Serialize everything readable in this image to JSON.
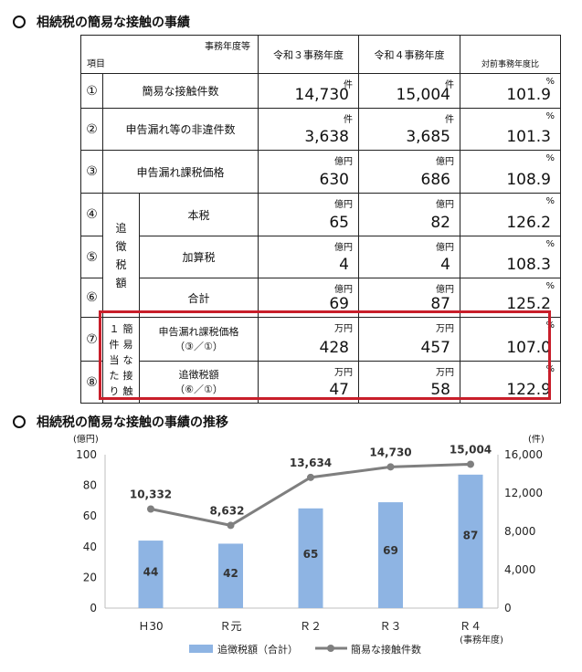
{
  "section1": {
    "title": "相続税の簡易な接触の事績"
  },
  "table": {
    "header_right_label": "事務年度等",
    "header_left_label": "項目",
    "col_r3": "令和３事務年度",
    "col_r4": "令和４事務年度",
    "col_ratio": "対前事務年度比",
    "group_label": "追徴税額",
    "per_case_label": "１件当たり",
    "simple_contact_label": "簡易な接触",
    "rows": [
      {
        "no": "①",
        "label": "簡易な接触件数",
        "unit": "件",
        "r3": "14,730",
        "r4": "15,004",
        "ratio_unit": "%",
        "ratio": "101.9"
      },
      {
        "no": "②",
        "label": "申告漏れ等の非違件数",
        "unit": "件",
        "r3": "3,638",
        "r4": "3,685",
        "ratio_unit": "%",
        "ratio": "101.3"
      },
      {
        "no": "③",
        "label": "申告漏れ課税価格",
        "unit": "億円",
        "r3": "630",
        "r4": "686",
        "ratio_unit": "%",
        "ratio": "108.9"
      },
      {
        "no": "④",
        "label": "本税",
        "unit": "億円",
        "r3": "65",
        "r4": "82",
        "ratio_unit": "%",
        "ratio": "126.2"
      },
      {
        "no": "⑤",
        "label": "加算税",
        "unit": "億円",
        "r3": "4",
        "r4": "4",
        "ratio_unit": "%",
        "ratio": "108.3"
      },
      {
        "no": "⑥",
        "label": "合計",
        "unit": "億円",
        "r3": "69",
        "r4": "87",
        "ratio_unit": "%",
        "ratio": "125.2"
      },
      {
        "no": "⑦",
        "label": "申告漏れ課税価格",
        "sub": "（③／①）",
        "unit": "万円",
        "r3": "428",
        "r4": "457",
        "ratio_unit": "%",
        "ratio": "107.0"
      },
      {
        "no": "⑧",
        "label": "追徴税額",
        "sub": "（⑥／①）",
        "unit": "万円",
        "r3": "47",
        "r4": "58",
        "ratio_unit": "%",
        "ratio": "122.9"
      }
    ]
  },
  "section2": {
    "title": "相続税の簡易な接触の事績の推移"
  },
  "chart_data": {
    "type": "bar",
    "categories": [
      "Ｈ30",
      "Ｒ元",
      "Ｒ２",
      "Ｒ３",
      "Ｒ４"
    ],
    "x_suffix": "(事務年度)",
    "left_unit": "(億円)",
    "right_unit": "(件)",
    "left_ylim": [
      0,
      100
    ],
    "left_ticks": [
      "0",
      "20",
      "40",
      "60",
      "80",
      "100"
    ],
    "right_ylim": [
      0,
      16000
    ],
    "right_ticks": [
      "0",
      "4,000",
      "8,000",
      "12,000",
      "16,000"
    ],
    "series": [
      {
        "name": "追徴税額（合計）",
        "type": "bar",
        "axis": "left",
        "values": [
          44,
          42,
          65,
          69,
          87
        ],
        "labels": [
          "44",
          "42",
          "65",
          "69",
          "87"
        ]
      },
      {
        "name": "簡易な接触件数",
        "type": "line",
        "axis": "right",
        "values": [
          10332,
          8632,
          13634,
          14730,
          15004
        ],
        "labels": [
          "10,332",
          "8,632",
          "13,634",
          "14,730",
          "15,004"
        ]
      }
    ],
    "colors": {
      "bar": "#8eb4e3",
      "line": "#7f7f7f",
      "axis": "#bfbfbf"
    }
  }
}
